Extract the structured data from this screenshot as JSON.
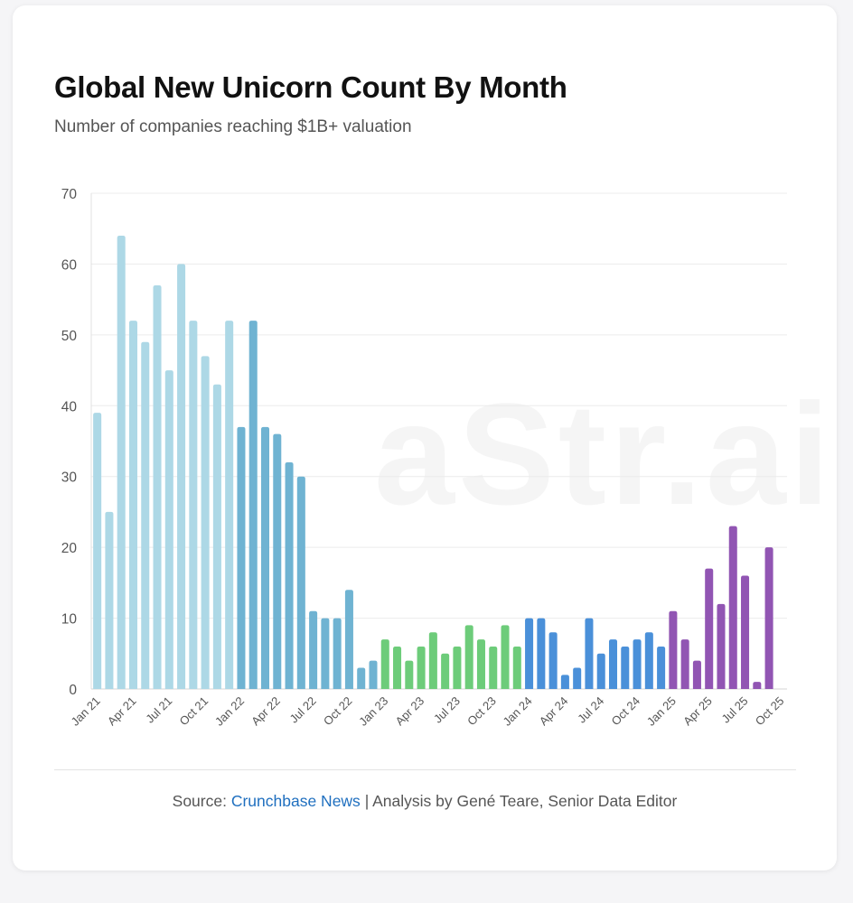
{
  "header": {
    "title": "Global New Unicorn Count By Month",
    "subtitle": "Number of companies reaching $1B+ valuation"
  },
  "footer": {
    "source_prefix": "Source:",
    "source_link": "Crunchbase News",
    "source_suffix": "| Analysis by Gené Teare, Senior Data Editor"
  },
  "watermark": "aStr.ai",
  "colors": {
    "2021": "#add8e6",
    "2022": "#6fb3d2",
    "2023": "#6dcc7a",
    "2024": "#4a90d9",
    "2025": "#9155b3",
    "grid": "#ececec",
    "axis_text": "#555555"
  },
  "chart_data": {
    "type": "bar",
    "title": "Global New Unicorn Count By Month",
    "subtitle": "Number of companies reaching $1B+ valuation",
    "xlabel": "",
    "ylabel": "",
    "ylim": [
      0,
      70
    ],
    "yticks": [
      0,
      10,
      20,
      30,
      40,
      50,
      60,
      70
    ],
    "grid": true,
    "x_tick_labels": [
      "Jan 21",
      "Apr 21",
      "Jul 21",
      "Oct 21",
      "Jan 22",
      "Apr 22",
      "Jul 22",
      "Oct 22",
      "Jan 23",
      "Apr 23",
      "Jul 23",
      "Oct 23",
      "Jan 24",
      "Apr 24",
      "Jul 24",
      "Oct 24",
      "Jan 25",
      "Apr 25",
      "Jul 25",
      "Oct 25"
    ],
    "categories": [
      "Jan 21",
      "Feb 21",
      "Mar 21",
      "Apr 21",
      "May 21",
      "Jun 21",
      "Jul 21",
      "Aug 21",
      "Sep 21",
      "Oct 21",
      "Nov 21",
      "Dec 21",
      "Jan 22",
      "Feb 22",
      "Mar 22",
      "Apr 22",
      "May 22",
      "Jun 22",
      "Jul 22",
      "Aug 22",
      "Sep 22",
      "Oct 22",
      "Nov 22",
      "Dec 22",
      "Jan 23",
      "Feb 23",
      "Mar 23",
      "Apr 23",
      "May 23",
      "Jun 23",
      "Jul 23",
      "Aug 23",
      "Sep 23",
      "Oct 23",
      "Nov 23",
      "Dec 23",
      "Jan 24",
      "Feb 24",
      "Mar 24",
      "Apr 24",
      "May 24",
      "Jun 24",
      "Jul 24",
      "Aug 24",
      "Sep 24",
      "Oct 24",
      "Nov 24",
      "Dec 24",
      "Jan 25",
      "Feb 25",
      "Mar 25",
      "Apr 25",
      "May 25",
      "Jun 25",
      "Jul 25",
      "Aug 25",
      "Sep 25",
      "Oct 25"
    ],
    "values": [
      39,
      25,
      64,
      52,
      49,
      57,
      45,
      60,
      52,
      47,
      43,
      52,
      37,
      52,
      37,
      36,
      32,
      30,
      11,
      10,
      10,
      14,
      3,
      4,
      7,
      6,
      4,
      6,
      8,
      5,
      6,
      9,
      7,
      6,
      9,
      6,
      10,
      10,
      8,
      2,
      3,
      10,
      5,
      7,
      6,
      7,
      8,
      6,
      11,
      7,
      4,
      17,
      12,
      23,
      16,
      1,
      20,
      0
    ]
  }
}
